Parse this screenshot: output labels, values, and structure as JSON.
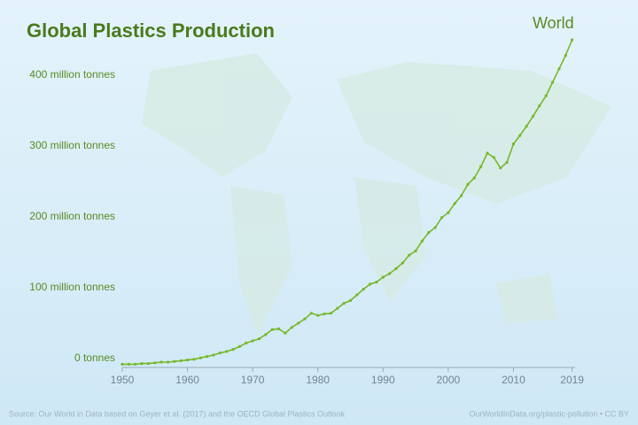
{
  "chart_data": {
    "type": "line",
    "title": "Global Plastics Production",
    "x": [
      1950,
      1951,
      1952,
      1953,
      1954,
      1955,
      1956,
      1957,
      1958,
      1959,
      1960,
      1961,
      1962,
      1963,
      1964,
      1965,
      1966,
      1967,
      1968,
      1969,
      1970,
      1971,
      1972,
      1973,
      1974,
      1975,
      1976,
      1977,
      1978,
      1979,
      1980,
      1981,
      1982,
      1983,
      1984,
      1985,
      1986,
      1987,
      1988,
      1989,
      1990,
      1991,
      1992,
      1993,
      1994,
      1995,
      1996,
      1997,
      1998,
      1999,
      2000,
      2001,
      2002,
      2003,
      2004,
      2005,
      2006,
      2007,
      2008,
      2009,
      2010,
      2011,
      2012,
      2013,
      2014,
      2015,
      2016,
      2017,
      2018,
      2019
    ],
    "series": [
      {
        "name": "World",
        "color": "#76b82a",
        "values": [
          2,
          2,
          2,
          3,
          3,
          4,
          5,
          5,
          6,
          7,
          8,
          9,
          11,
          13,
          15,
          18,
          20,
          23,
          27,
          32,
          35,
          38,
          44,
          51,
          52,
          46,
          54,
          60,
          66,
          74,
          71,
          73,
          74,
          81,
          88,
          92,
          100,
          108,
          115,
          118,
          125,
          130,
          137,
          145,
          156,
          162,
          176,
          188,
          195,
          209,
          216,
          229,
          240,
          256,
          265,
          281,
          300,
          294,
          279,
          287,
          313,
          325,
          338,
          352,
          367,
          381,
          400,
          419,
          438,
          460
        ]
      }
    ],
    "xlim": [
      1950,
      2020
    ],
    "xticks": [
      1950,
      1960,
      1970,
      1980,
      1990,
      2000,
      2010,
      2019
    ],
    "ylim": [
      0,
      480
    ],
    "yticks": [
      {
        "value": 0,
        "label": "0 tonnes"
      },
      {
        "value": 100,
        "label": "100 million tonnes"
      },
      {
        "value": 200,
        "label": "200 million tonnes"
      },
      {
        "value": 300,
        "label": "300 million tonnes"
      },
      {
        "value": 400,
        "label": "400 million tonnes"
      }
    ],
    "source": "Source: Our World in Data based on Geyer et al. (2017) and the OECD Global Plastics Outlook",
    "credit": "OurWorldInData.org/plastic-pollution • CC BY"
  }
}
